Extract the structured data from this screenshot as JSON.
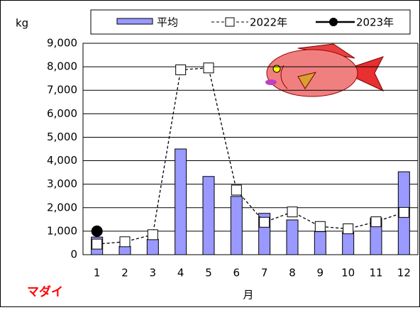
{
  "chart_data": {
    "type": "bar",
    "y_unit_label": "kg",
    "x_label": "月",
    "species": "マダイ",
    "categories": [
      "1",
      "2",
      "3",
      "4",
      "5",
      "6",
      "7",
      "8",
      "9",
      "10",
      "11",
      "12"
    ],
    "series": [
      {
        "name": "平均",
        "type": "bar",
        "color": "#9999ff",
        "values": [
          750,
          350,
          650,
          4500,
          3330,
          2480,
          1760,
          1480,
          980,
          950,
          1560,
          3530
        ]
      },
      {
        "name": "2022年",
        "type": "line",
        "color": "#000000",
        "values": [
          450,
          550,
          850,
          7870,
          7950,
          2750,
          1380,
          1820,
          1200,
          1100,
          1400,
          1800
        ]
      },
      {
        "name": "2023年",
        "type": "line",
        "color": "#000000",
        "values": [
          1000,
          null,
          null,
          null,
          null,
          null,
          null,
          null,
          null,
          null,
          null,
          null
        ]
      }
    ],
    "ylim": [
      0,
      9000
    ],
    "yticks": [
      0,
      {
        "value": 1000,
        "label": "1,000"
      },
      {
        "value": 2000,
        "label": "2,000"
      },
      {
        "value": 3000,
        "label": "3,000"
      },
      {
        "value": 4000,
        "label": "4,000"
      },
      {
        "value": 5000,
        "label": "5,000"
      },
      {
        "value": 6000,
        "label": "6,000"
      },
      {
        "value": 7000,
        "label": "7,000"
      },
      {
        "value": 8000,
        "label": "8,000"
      },
      {
        "value": 9000,
        "label": "9,000"
      }
    ],
    "grid": true
  }
}
